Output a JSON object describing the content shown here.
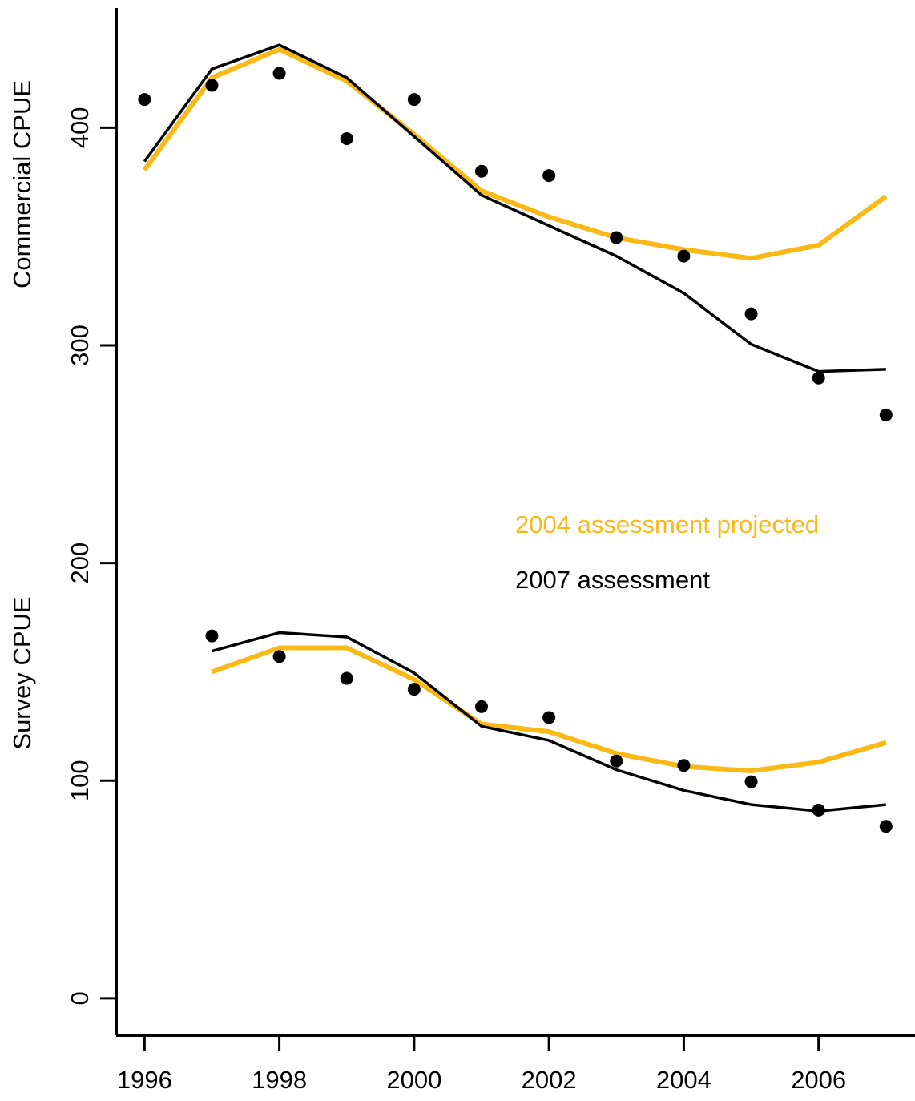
{
  "chart_data": {
    "type": "line",
    "y_labels": [
      "Commercial CPUE",
      "Survey CPUE"
    ],
    "x": [
      1996,
      1997,
      1998,
      1999,
      2000,
      2001,
      2002,
      2003,
      2004,
      2005,
      2006,
      2007
    ],
    "xlim": [
      1995.58,
      2007.43
    ],
    "xticks": [
      1996,
      1998,
      2000,
      2002,
      2004,
      2006
    ],
    "ylim": [
      -17,
      455
    ],
    "yticks": [
      0,
      100,
      200,
      300,
      400
    ],
    "observed": {
      "color": "#000000",
      "commercial": [
        413,
        419.5,
        425,
        395,
        413,
        380,
        378,
        349.5,
        341,
        314.5,
        285,
        268
      ],
      "survey": [
        null,
        166.5,
        157,
        147,
        142,
        134,
        129,
        109,
        107,
        99.5,
        86.5,
        79
      ]
    },
    "series": [
      {
        "name": "2004 assessment projected",
        "color": "#FBB917",
        "width": 6,
        "commercial": [
          380.5,
          423,
          436,
          421.5,
          397,
          371,
          359,
          349.5,
          344,
          340,
          346,
          368.5
        ],
        "survey": [
          null,
          150,
          161,
          161,
          146.5,
          126,
          122.5,
          112.5,
          106.5,
          104.5,
          108.5,
          117.5
        ]
      },
      {
        "name": "2007 assessment",
        "color": "#000000",
        "width": 3.5,
        "commercial": [
          384.5,
          427,
          438,
          423,
          396,
          369,
          355,
          341,
          324,
          300.5,
          288,
          289
        ],
        "survey": [
          null,
          159.5,
          168,
          166,
          149.5,
          125,
          118.5,
          105,
          95.5,
          89,
          86,
          89
        ]
      }
    ]
  }
}
